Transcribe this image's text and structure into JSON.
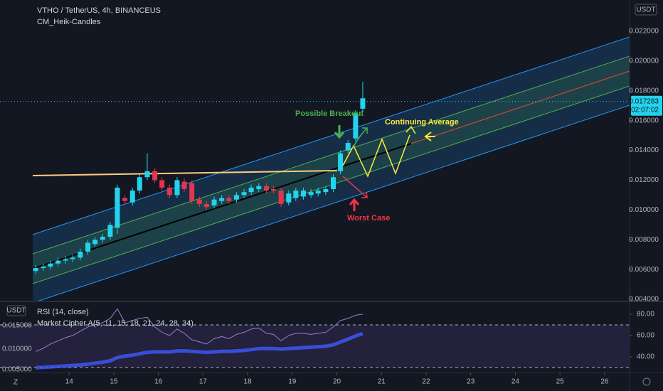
{
  "header": {
    "symbol": "VTHO / TetherUS, 4h, BINANCEUS",
    "indicator": "CM_Heik-Candles"
  },
  "footer": {
    "zoom": "Z"
  },
  "chart_data": [
    {
      "type": "candlestick",
      "x": [
        13.25,
        13.42,
        13.58,
        13.75,
        13.92,
        14.08,
        14.25,
        14.42,
        14.58,
        14.75,
        14.92,
        15.08,
        15.25,
        15.42,
        15.58,
        15.75,
        15.92,
        16.08,
        16.25,
        16.42,
        16.58,
        16.75,
        16.92,
        17.08,
        17.25,
        17.42,
        17.58,
        17.75,
        17.92,
        18.08,
        18.25,
        18.42,
        18.58,
        18.75,
        18.92,
        19.08,
        19.25,
        19.42,
        19.58,
        19.75,
        19.92,
        20.08,
        20.25,
        20.42,
        20.58
      ],
      "open": [
        0.0059,
        0.0061,
        0.0062,
        0.0064,
        0.0066,
        0.0067,
        0.0068,
        0.0072,
        0.0077,
        0.008,
        0.0082,
        0.0088,
        0.0108,
        0.0105,
        0.0113,
        0.0122,
        0.0126,
        0.012,
        0.0115,
        0.011,
        0.0119,
        0.0118,
        0.0107,
        0.0104,
        0.0103,
        0.0106,
        0.0108,
        0.0107,
        0.011,
        0.0112,
        0.0114,
        0.0116,
        0.0114,
        0.0113,
        0.0105,
        0.0108,
        0.0109,
        0.011,
        0.0111,
        0.0112,
        0.0114,
        0.0126,
        0.014,
        0.0148,
        0.0168
      ],
      "close": [
        0.0061,
        0.0062,
        0.0064,
        0.0066,
        0.0067,
        0.0068,
        0.0072,
        0.0078,
        0.008,
        0.0082,
        0.009,
        0.0115,
        0.0106,
        0.0113,
        0.0122,
        0.0126,
        0.012,
        0.0115,
        0.011,
        0.012,
        0.0114,
        0.0106,
        0.0104,
        0.0102,
        0.0107,
        0.0108,
        0.0106,
        0.011,
        0.0112,
        0.0115,
        0.0116,
        0.0113,
        0.0113,
        0.0104,
        0.0111,
        0.0113,
        0.0113,
        0.0112,
        0.0113,
        0.0114,
        0.0122,
        0.0138,
        0.0145,
        0.0165,
        0.0175
      ],
      "high": [
        0.0063,
        0.0064,
        0.0066,
        0.0068,
        0.0069,
        0.007,
        0.0074,
        0.008,
        0.0082,
        0.0084,
        0.0092,
        0.0117,
        0.011,
        0.0115,
        0.0124,
        0.0138,
        0.0128,
        0.0122,
        0.0117,
        0.0122,
        0.0121,
        0.012,
        0.0109,
        0.0106,
        0.0109,
        0.011,
        0.011,
        0.0112,
        0.0114,
        0.0117,
        0.0118,
        0.0118,
        0.0116,
        0.0115,
        0.0113,
        0.0115,
        0.0115,
        0.0114,
        0.0115,
        0.0116,
        0.0124,
        0.014,
        0.0147,
        0.0167,
        0.0186
      ],
      "low": [
        0.0057,
        0.0059,
        0.006,
        0.0062,
        0.0064,
        0.0065,
        0.0066,
        0.007,
        0.0075,
        0.0078,
        0.008,
        0.0084,
        0.0104,
        0.0103,
        0.0111,
        0.012,
        0.0118,
        0.0113,
        0.0108,
        0.0108,
        0.0112,
        0.0104,
        0.0102,
        0.01,
        0.0101,
        0.0104,
        0.0104,
        0.0105,
        0.0108,
        0.011,
        0.0112,
        0.0111,
        0.0111,
        0.0102,
        0.0103,
        0.0106,
        0.0107,
        0.0108,
        0.0109,
        0.011,
        0.0112,
        0.0124,
        0.0138,
        0.0146,
        0.0166
      ],
      "up_color": "#22d3ee",
      "down_color": "#e0364f",
      "xlim": [
        12.45,
        26.56
      ],
      "xticks": [
        14,
        15,
        16,
        17,
        18,
        19,
        20,
        21,
        22,
        23,
        24,
        25,
        26
      ],
      "ylim": [
        0.004,
        0.0241
      ],
      "yticks": [
        {
          "value": 0.004,
          "label": "0.004000"
        },
        {
          "value": 0.006,
          "label": "0.006000"
        },
        {
          "value": 0.008,
          "label": "0.008000"
        },
        {
          "value": 0.01,
          "label": "0.010000"
        },
        {
          "value": 0.012,
          "label": "0.012000"
        },
        {
          "value": 0.014,
          "label": "0.014000"
        },
        {
          "value": 0.016,
          "label": "0.016000"
        },
        {
          "value": 0.018,
          "label": "0.018000"
        },
        {
          "value": 0.02,
          "label": "0.020000"
        },
        {
          "value": 0.022,
          "label": "0.022000"
        }
      ],
      "y_unit": "USDT",
      "last_price": {
        "value": 0.017283,
        "label": "0.017283"
      },
      "countdown": "02:07:02",
      "annotations": [
        "Possible Breakout",
        "Continuing Average",
        "Worst Case"
      ]
    },
    {
      "type": "line",
      "x": [
        13.25,
        13.42,
        13.58,
        13.75,
        13.92,
        14.08,
        14.25,
        14.42,
        14.58,
        14.75,
        14.92,
        15.08,
        15.25,
        15.42,
        15.58,
        15.75,
        15.92,
        16.08,
        16.25,
        16.42,
        16.58,
        16.75,
        16.92,
        17.08,
        17.25,
        17.42,
        17.58,
        17.75,
        17.92,
        18.08,
        18.25,
        18.42,
        18.58,
        18.75,
        18.92,
        19.08,
        19.25,
        19.42,
        19.58,
        19.75,
        19.92,
        20.08,
        20.25,
        20.42,
        20.58
      ],
      "series": [
        {
          "name": "RSI (14, close)",
          "color": "#9c7fd6",
          "values": [
            45,
            48,
            52,
            55,
            58,
            60,
            64,
            68,
            70,
            72,
            76,
            85,
            72,
            74,
            76,
            77,
            68,
            63,
            60,
            66,
            62,
            56,
            54,
            52,
            57,
            59,
            57,
            61,
            63,
            66,
            67,
            62,
            61,
            55,
            60,
            62,
            62,
            61,
            62,
            63,
            68,
            74,
            76,
            79,
            80
          ]
        },
        {
          "name": "Market Cipher A(5, 11, 15, 18, 21, 24, 28, 34)",
          "color": "#3d5afe",
          "axis": "y2",
          "values": [
            0.006,
            0.0061,
            0.0062,
            0.0063,
            0.0064,
            0.0065,
            0.0066,
            0.0068,
            0.007,
            0.0072,
            0.0075,
            0.0082,
            0.0085,
            0.0087,
            0.009,
            0.0093,
            0.0094,
            0.0094,
            0.0094,
            0.0096,
            0.0096,
            0.0095,
            0.0094,
            0.0093,
            0.0094,
            0.0095,
            0.0095,
            0.0096,
            0.0097,
            0.0099,
            0.0101,
            0.0101,
            0.0101,
            0.01,
            0.0101,
            0.0102,
            0.0103,
            0.0104,
            0.0105,
            0.0106,
            0.0109,
            0.0115,
            0.0121,
            0.0128,
            0.0133
          ]
        }
      ],
      "ylim": [
        25.3,
        91.3
      ],
      "yticks": [
        {
          "value": 40,
          "label": "40.00"
        },
        {
          "value": 60,
          "label": "60.00"
        },
        {
          "value": 80,
          "label": "80.00"
        }
      ],
      "y2lim": [
        0.005,
        0.02
      ],
      "y2ticks": [
        {
          "value": 0.005,
          "label": "0.005000"
        },
        {
          "value": 0.01,
          "label": "0.010000"
        },
        {
          "value": 0.015,
          "label": "0.015000"
        }
      ],
      "y2_unit": "USDT",
      "levels": [
        70,
        30
      ]
    }
  ]
}
